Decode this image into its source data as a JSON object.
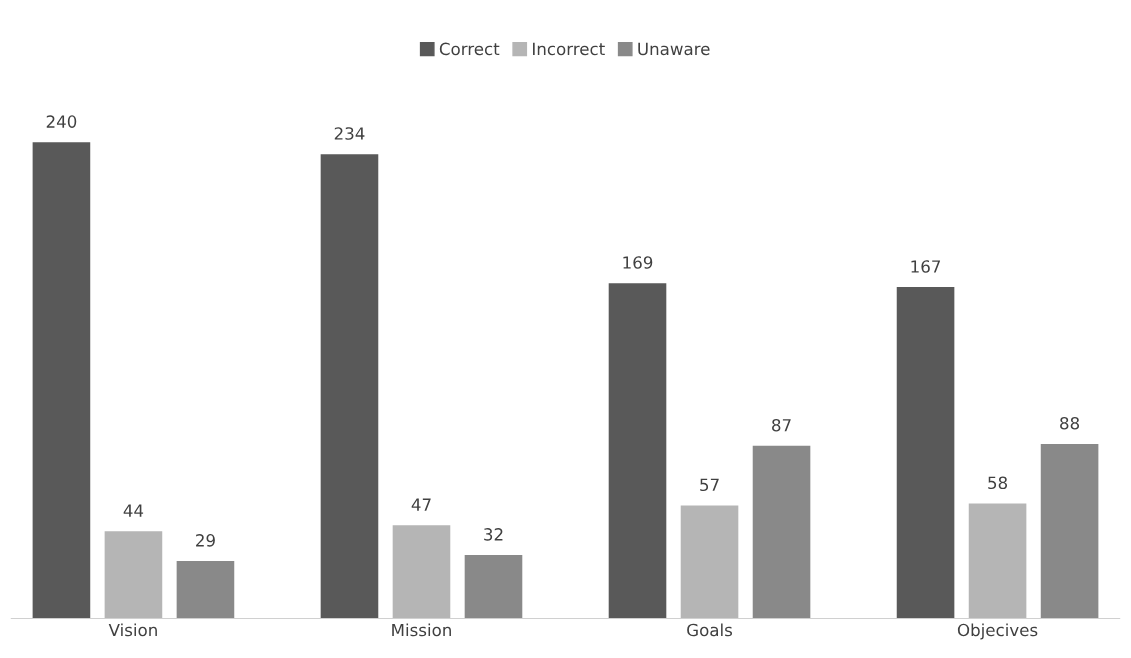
{
  "chart_data": {
    "type": "bar",
    "categories": [
      "Vision",
      "Mission",
      "Goals",
      "Objecives"
    ],
    "series": [
      {
        "name": "Correct",
        "color": "#595959",
        "values": [
          240,
          234,
          169,
          167
        ]
      },
      {
        "name": "Incorrect",
        "color": "#b5b5b5",
        "values": [
          44,
          47,
          57,
          58
        ]
      },
      {
        "name": "Unaware",
        "color": "#898989",
        "values": [
          29,
          32,
          87,
          88
        ]
      }
    ],
    "data_labels": true,
    "legend": "top",
    "grid": false,
    "tick_labels": "x"
  }
}
